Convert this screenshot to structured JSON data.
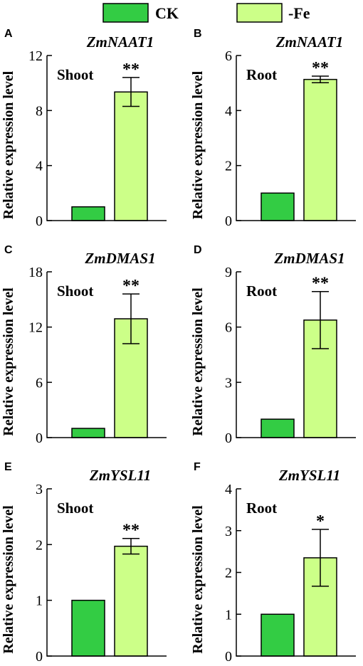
{
  "legend": {
    "items": [
      {
        "label": "CK",
        "color": "#33cc44"
      },
      {
        "label": "-Fe",
        "color": "#ccff88"
      }
    ]
  },
  "ylabel": "Relative expression level",
  "chart_data": [
    {
      "type": "bar",
      "letter": "A",
      "title": "ZmNAAT1",
      "tissue": "Shoot",
      "ylim": [
        0,
        12
      ],
      "yticks": [
        "0",
        "4",
        "8",
        "12"
      ],
      "categories": [
        "CK",
        "-Fe"
      ],
      "values": [
        1,
        9.35
      ],
      "errors": [
        0,
        1.05
      ],
      "significance": "**"
    },
    {
      "type": "bar",
      "letter": "B",
      "title": "ZmNAAT1",
      "tissue": "Root",
      "ylim": [
        0,
        6
      ],
      "yticks": [
        "0",
        "2",
        "4",
        "6"
      ],
      "categories": [
        "CK",
        "-Fe"
      ],
      "values": [
        1,
        5.13
      ],
      "errors": [
        0,
        0.12
      ],
      "significance": "**"
    },
    {
      "type": "bar",
      "letter": "C",
      "title": "ZmDMAS1",
      "tissue": "Shoot",
      "ylim": [
        0,
        18
      ],
      "yticks": [
        "0",
        "6",
        "12",
        "18"
      ],
      "categories": [
        "CK",
        "-Fe"
      ],
      "values": [
        1,
        12.9
      ],
      "errors": [
        0,
        2.7
      ],
      "significance": "**"
    },
    {
      "type": "bar",
      "letter": "D",
      "title": "ZmDMAS1",
      "tissue": "Root",
      "ylim": [
        0,
        9
      ],
      "yticks": [
        "0",
        "3",
        "6",
        "9"
      ],
      "categories": [
        "CK",
        "-Fe"
      ],
      "values": [
        1,
        6.38
      ],
      "errors": [
        0,
        1.55
      ],
      "significance": "**"
    },
    {
      "type": "bar",
      "letter": "E",
      "title": "ZmYSL11",
      "tissue": "Shoot",
      "ylim": [
        0,
        3
      ],
      "yticks": [
        "0",
        "1",
        "2",
        "3"
      ],
      "categories": [
        "CK",
        "-Fe"
      ],
      "values": [
        1,
        1.97
      ],
      "errors": [
        0,
        0.14
      ],
      "significance": "**"
    },
    {
      "type": "bar",
      "letter": "F",
      "title": "ZmYSL11",
      "tissue": "Root",
      "ylim": [
        0,
        4
      ],
      "yticks": [
        "0",
        "1",
        "2",
        "3",
        "4"
      ],
      "categories": [
        "CK",
        "-Fe"
      ],
      "values": [
        1,
        2.35
      ],
      "errors": [
        0,
        0.68
      ],
      "significance": "*"
    }
  ]
}
